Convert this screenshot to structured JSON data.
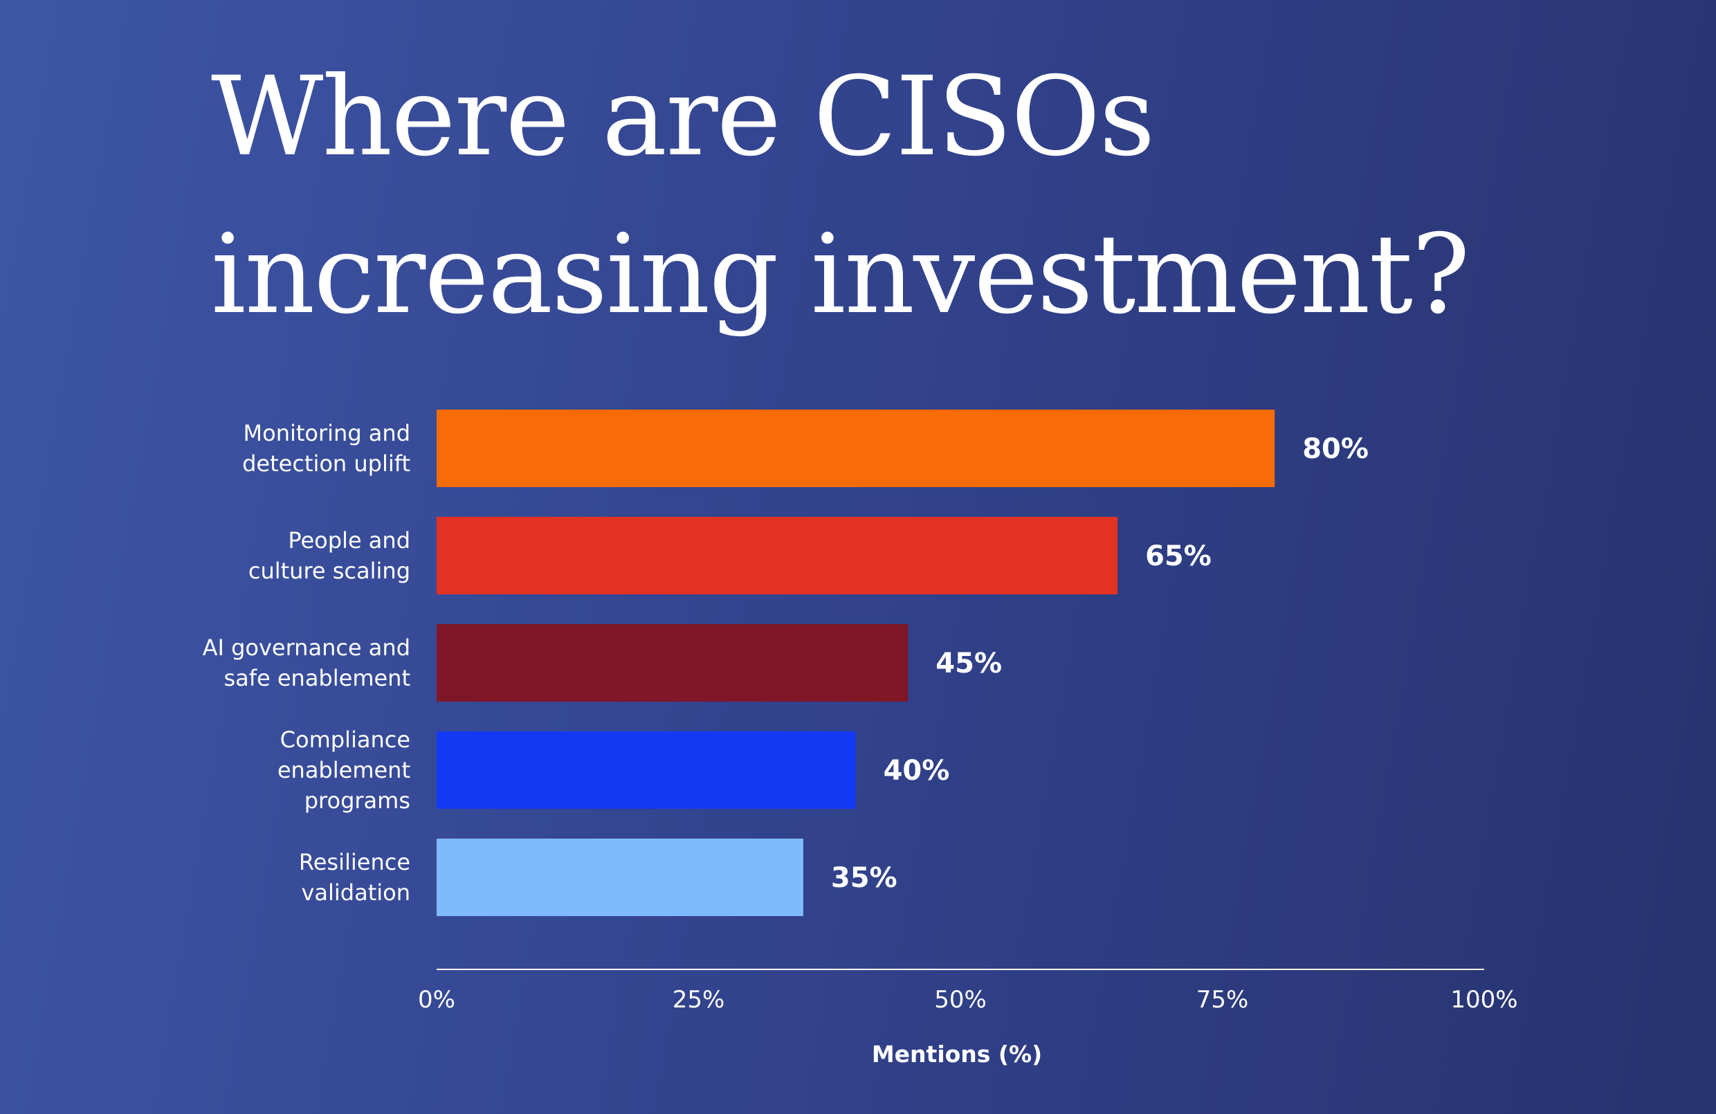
{
  "title_lines": [
    "Where are CISOs",
    "increasing investment?"
  ],
  "chart_data": {
    "type": "bar",
    "orientation": "horizontal",
    "title": "Where are CISOs increasing investment?",
    "categories": [
      [
        "Monitoring and",
        "detection uplift"
      ],
      [
        "People and",
        "culture scaling"
      ],
      [
        "AI governance and",
        "safe enablement"
      ],
      [
        "Compliance",
        "enablement",
        "programs"
      ],
      [
        "Resilience",
        "validation"
      ]
    ],
    "values": [
      80,
      65,
      45,
      40,
      35
    ],
    "value_labels": [
      "80%",
      "65%",
      "45%",
      "40%",
      "35%"
    ],
    "colors": [
      "#f76b08",
      "#e33222",
      "#7f1726",
      "#1439f5",
      "#7fbaff"
    ],
    "xlim": [
      0,
      100
    ],
    "xticks": [
      0,
      25,
      50,
      75,
      100
    ],
    "xtick_labels": [
      "0%",
      "25%",
      "50%",
      "75%",
      "100%"
    ],
    "xlabel": "Mentions (%)",
    "ylabel": "",
    "grid": false,
    "legend": "none"
  }
}
